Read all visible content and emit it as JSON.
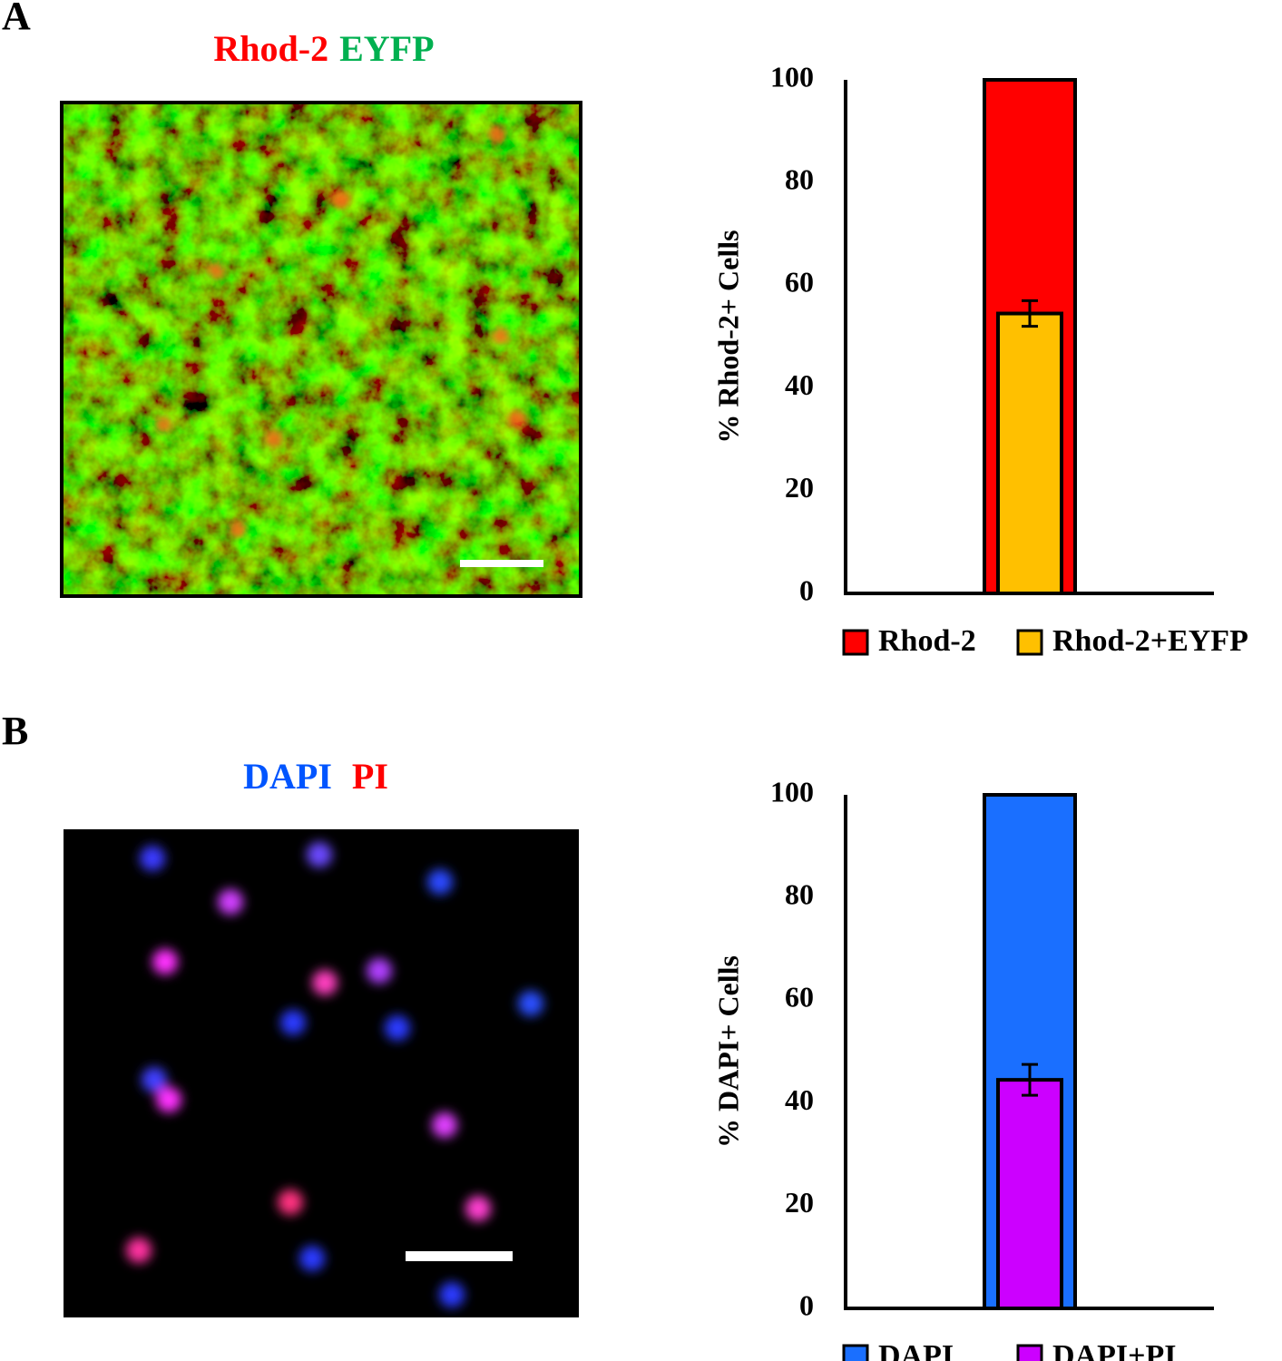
{
  "panels": [
    {
      "label": "A",
      "image_labels": [
        "Rhod-2",
        "EYFP"
      ]
    },
    {
      "label": "B",
      "image_labels": [
        "DAPI",
        "PI"
      ]
    }
  ],
  "chart_data": [
    {
      "type": "bar",
      "categories": [
        null
      ],
      "ylabel": "% Rhod-2+ Cells",
      "ylim": [
        0,
        100
      ],
      "yticks": [
        0,
        20,
        40,
        60,
        80,
        100
      ],
      "legend": "bottom",
      "series": [
        {
          "name": "Rhod-2",
          "color": "#ff0000",
          "values": [
            100
          ]
        },
        {
          "name": "Rhod-2+EYFP",
          "color": "#ffc000",
          "values": [
            54.5
          ],
          "errors": [
            2.5
          ]
        }
      ]
    },
    {
      "type": "bar",
      "categories": [
        null
      ],
      "ylabel": "% DAPI+ Cells",
      "ylim": [
        0,
        100
      ],
      "yticks": [
        0,
        20,
        40,
        60,
        80,
        100
      ],
      "legend": "bottom",
      "series": [
        {
          "name": "DAPI",
          "color": "#1a6fff",
          "values": [
            100
          ]
        },
        {
          "name": "DAPI+PI",
          "color": "#cc00ff",
          "values": [
            44.5
          ],
          "errors": [
            3
          ]
        }
      ]
    }
  ]
}
